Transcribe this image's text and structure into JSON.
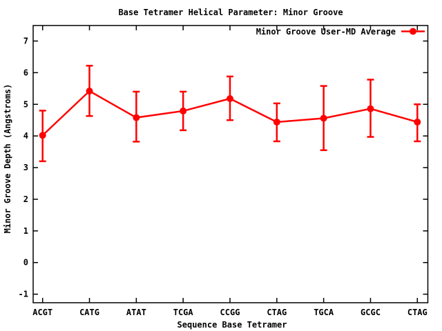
{
  "title": "Base Tetramer Helical Parameter: Minor Groove",
  "colors": {
    "series": "#ff0000",
    "axis": "#000000",
    "background": "#ffffff",
    "text": "#000000"
  },
  "chart_data": {
    "type": "line",
    "title": "Base Tetramer Helical Parameter: Minor Groove",
    "xlabel": "Sequence Base Tetramer",
    "ylabel": "Minor Groove Depth (Angstroms)",
    "legend_position": "top-right-inside",
    "grid": false,
    "categories": [
      "ACGT",
      "CATG",
      "ATAT",
      "TCGA",
      "CCGG",
      "CTAG",
      "TGCA",
      "GCGC",
      "CTAG"
    ],
    "yticks": [
      -1,
      0,
      1,
      2,
      3,
      4,
      5,
      6,
      7
    ],
    "ylim": [
      -1.27,
      7.49
    ],
    "series": [
      {
        "name": "Minor Groove User-MD Average",
        "color": "#ff0000",
        "marker": "filled-circle",
        "values": [
          4.02,
          5.42,
          4.58,
          4.79,
          5.18,
          4.44,
          4.56,
          4.86,
          4.44
        ],
        "error_high": [
          4.8,
          6.22,
          5.4,
          5.4,
          5.88,
          5.03,
          5.58,
          5.78,
          5.0
        ],
        "error_low": [
          3.2,
          4.63,
          3.82,
          4.18,
          4.5,
          3.83,
          3.55,
          3.97,
          3.83
        ]
      }
    ]
  }
}
